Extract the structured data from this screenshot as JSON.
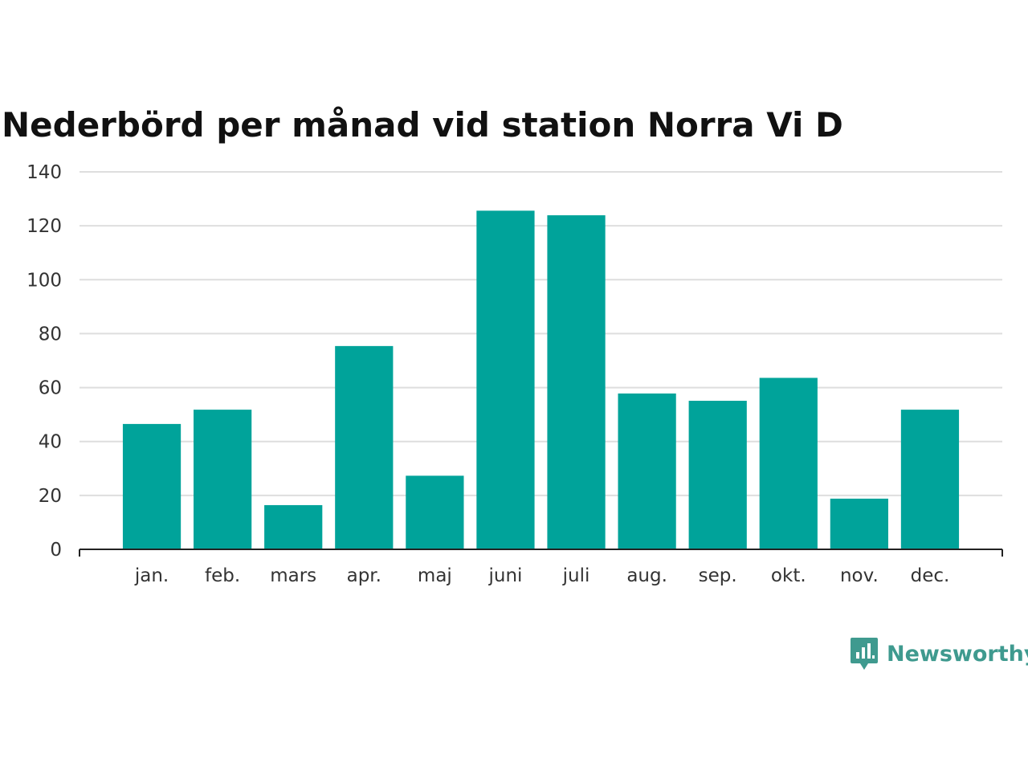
{
  "colors": {
    "bar": "#00a39a",
    "grid": "#dedede",
    "axis": "#222222",
    "text": "#333333",
    "title": "#111111",
    "brand": "#3f9a8f"
  },
  "brand": {
    "name": "Newsworthy",
    "icon": "chart-speech-bubble-icon"
  },
  "chart_data": {
    "type": "bar",
    "title": "Nederbörd per månad vid station Norra Vi D",
    "xlabel": "",
    "ylabel": "",
    "ylim": [
      0,
      140
    ],
    "yticks": [
      0,
      20,
      40,
      60,
      80,
      100,
      120,
      140
    ],
    "grid": true,
    "categories": [
      "jan.",
      "feb.",
      "mars",
      "apr.",
      "maj",
      "juni",
      "juli",
      "aug.",
      "sep.",
      "okt.",
      "nov.",
      "dec."
    ],
    "values": [
      46.5,
      51.8,
      16.4,
      75.4,
      27.3,
      125.6,
      123.9,
      57.8,
      55.1,
      63.6,
      18.8,
      51.8
    ]
  }
}
